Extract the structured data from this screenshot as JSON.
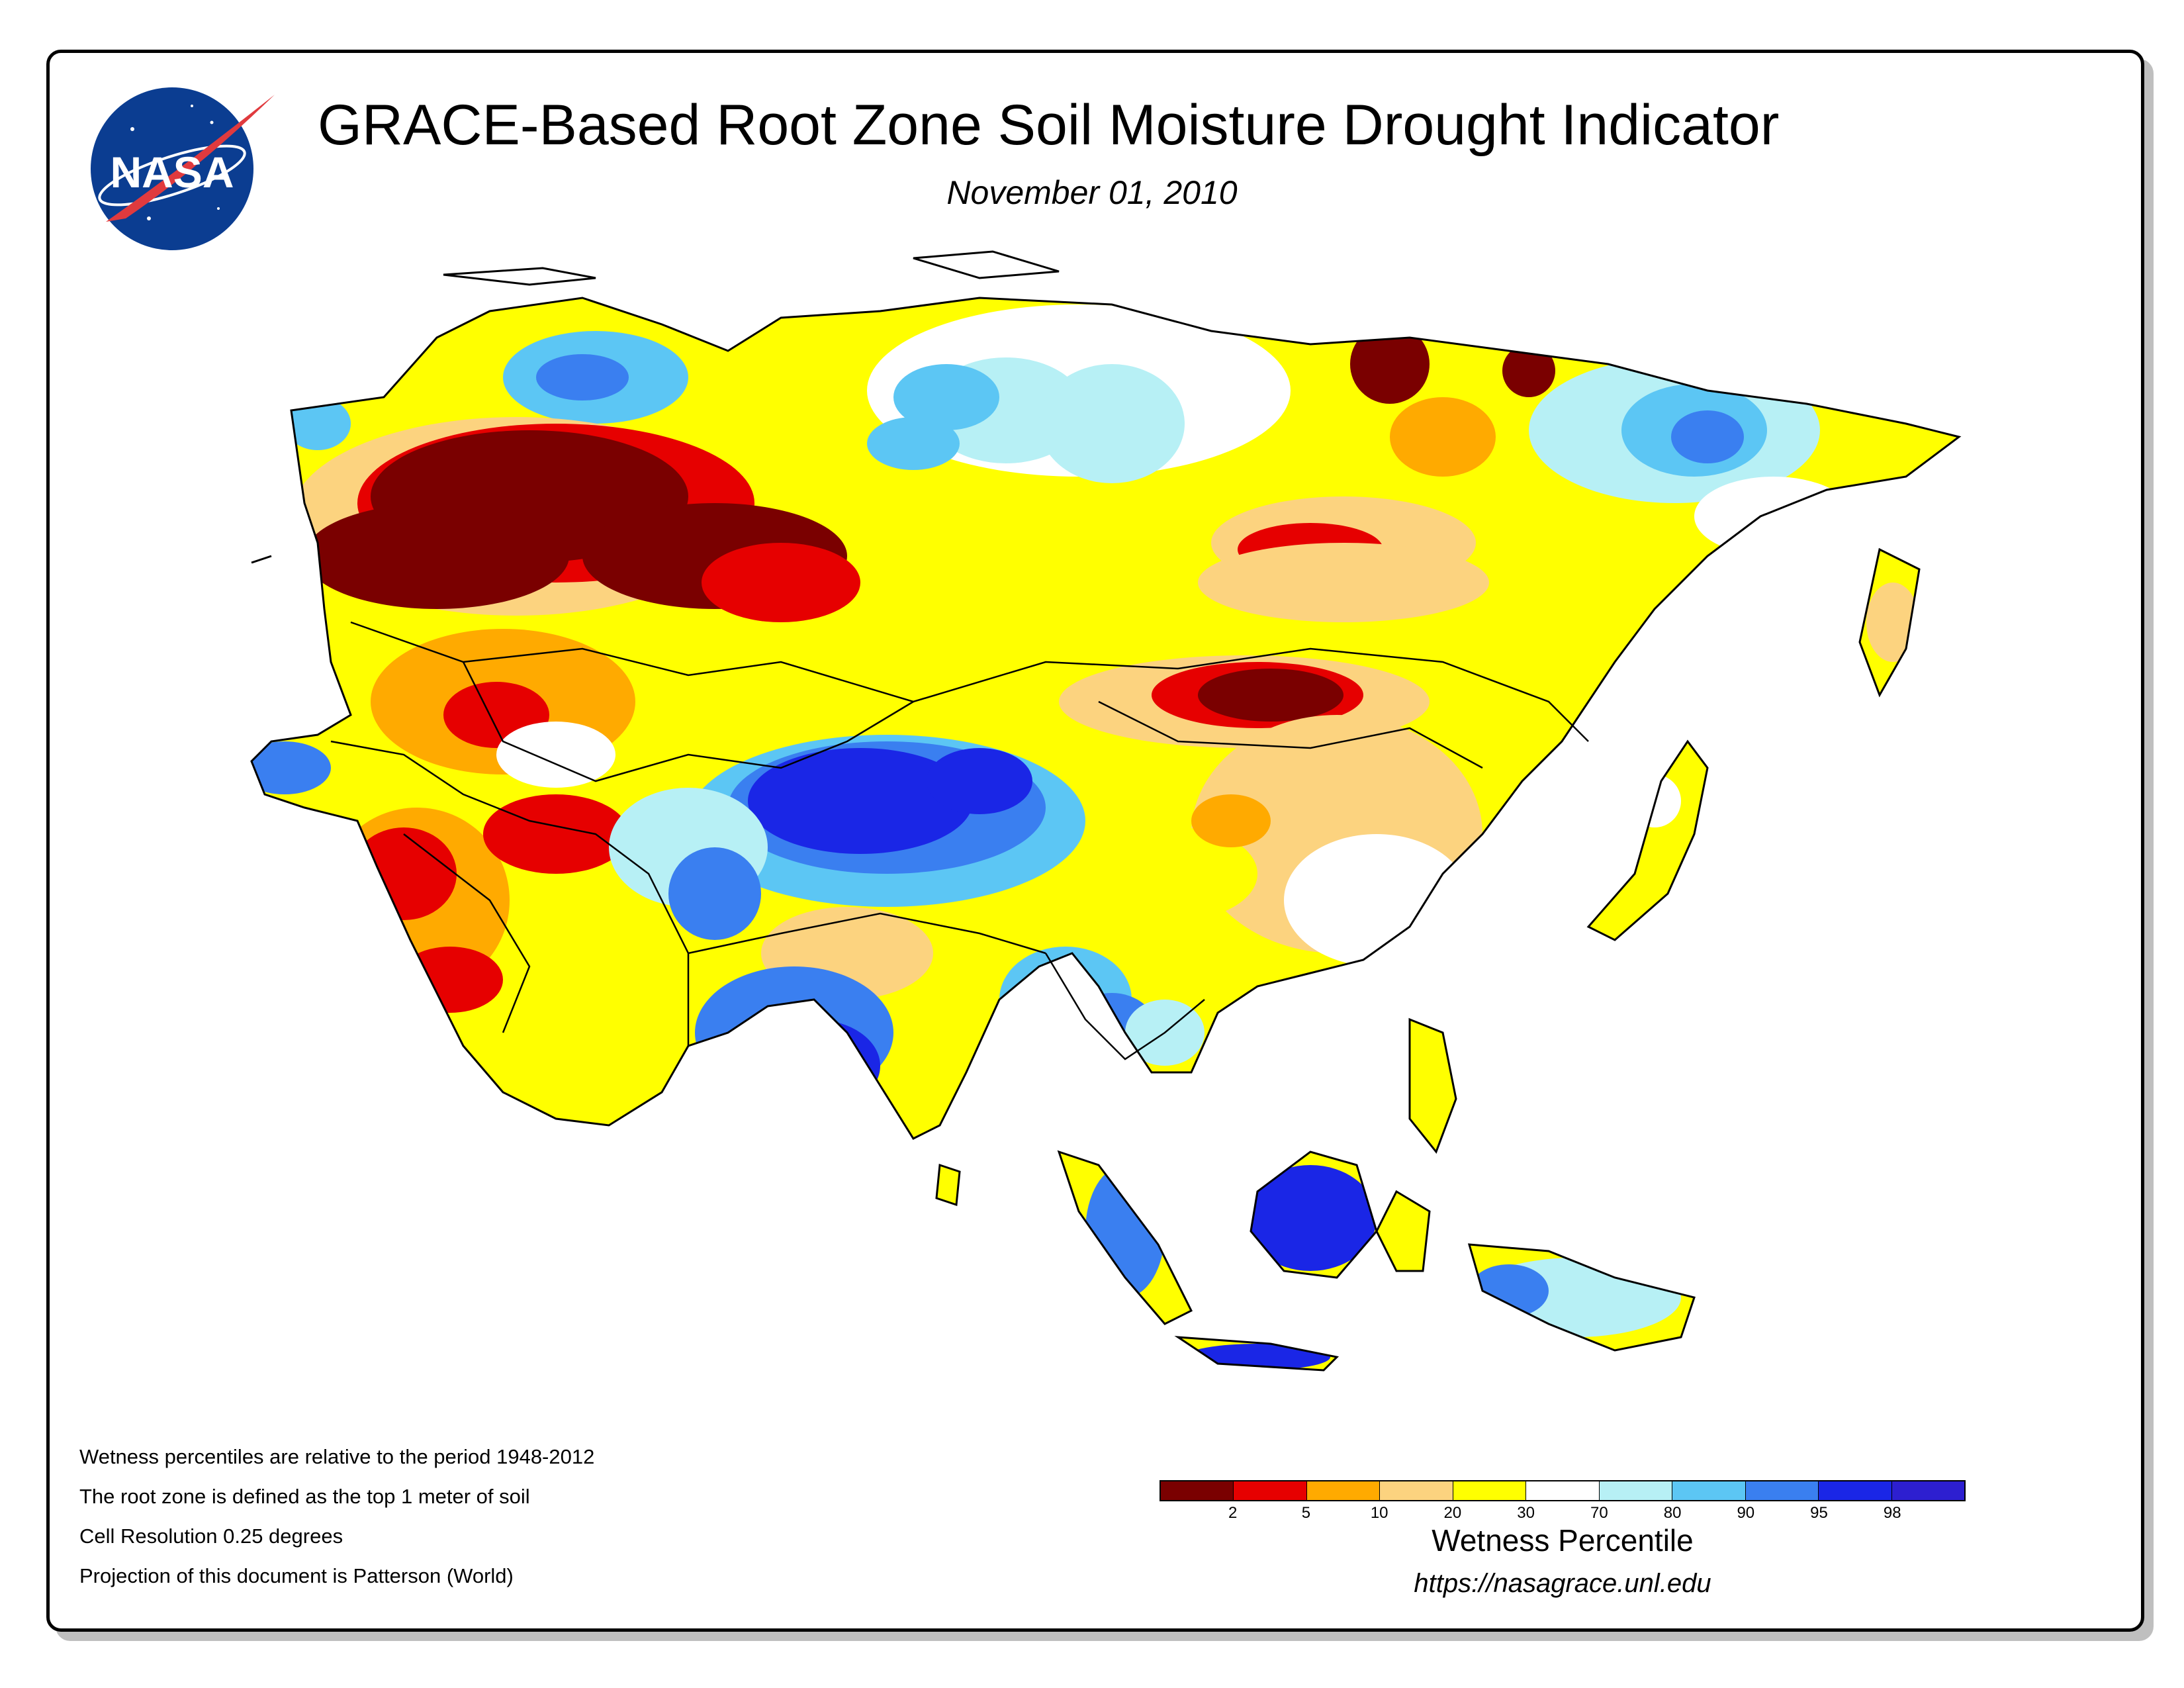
{
  "header": {
    "title": "GRACE-Based Root Zone Soil Moisture Drought Indicator",
    "date": "November 01, 2010",
    "logo_text": "NASA"
  },
  "notes": [
    "Wetness percentiles are relative to the period 1948-2012",
    "The root zone is defined as the top 1 meter of soil",
    "Cell Resolution 0.25 degrees",
    "Projection of this document is Patterson (World)"
  ],
  "legend": {
    "title": "Wetness Percentile",
    "ticks": [
      "2",
      "5",
      "10",
      "20",
      "30",
      "70",
      "80",
      "90",
      "95",
      "98"
    ],
    "colors": [
      "#7a0000",
      "#e60000",
      "#ffaa00",
      "#fcd37f",
      "#ffff00",
      "#ffffff",
      "#b7f0f5",
      "#5cc6f4",
      "#3a7ff0",
      "#1a26e6",
      "#2d1fd0"
    ]
  },
  "footer": {
    "url": "https://nasagrace.unl.edu"
  },
  "map_colors": {
    "ocean": "#ffffff",
    "border": "#000000",
    "extreme_dry": "#7a0000",
    "severe_dry": "#e60000",
    "dry": "#ffaa00",
    "abnormal_dry": "#fcd37f",
    "slightly_dry": "#ffff00",
    "normal": "#ffffff",
    "slightly_wet": "#b7f0f5",
    "wet": "#5cc6f4",
    "very_wet": "#3a7ff0",
    "extreme_wet": "#1a26e6"
  }
}
